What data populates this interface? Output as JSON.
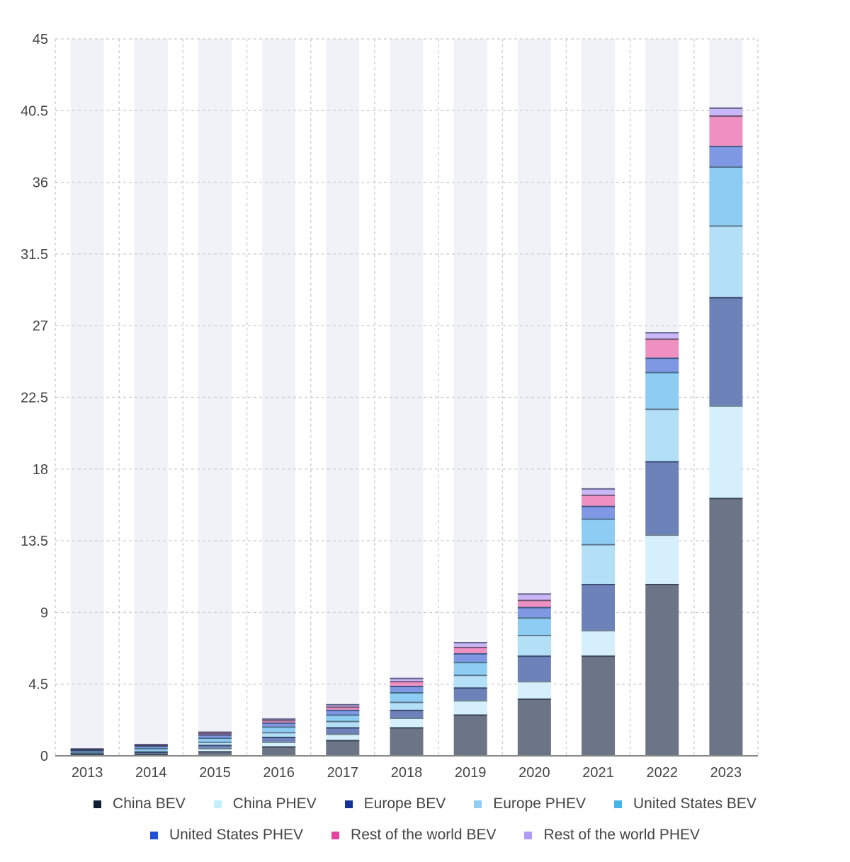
{
  "chart_data": {
    "type": "bar",
    "stacked": true,
    "categories": [
      "2013",
      "2014",
      "2015",
      "2016",
      "2017",
      "2018",
      "2019",
      "2020",
      "2021",
      "2022",
      "2023"
    ],
    "ylim": [
      0,
      45
    ],
    "yticks": [
      "0",
      "4.5",
      "9",
      "13.5",
      "18",
      "22.5",
      "27",
      "31.5",
      "36",
      "40.5",
      "45"
    ],
    "grid": true,
    "legend_position": "bottom",
    "series": [
      {
        "name": "China BEV",
        "color": "#6b7585",
        "values": [
          0.05,
          0.1,
          0.3,
          0.6,
          1.0,
          1.8,
          2.6,
          3.6,
          6.3,
          10.8,
          16.2
        ]
      },
      {
        "name": "China PHEV",
        "color": "#d6f0fb",
        "values": [
          0.05,
          0.05,
          0.2,
          0.3,
          0.4,
          0.6,
          0.9,
          1.1,
          1.6,
          3.1,
          5.8
        ]
      },
      {
        "name": "Europe BEV",
        "color": "#6c82b9",
        "values": [
          0.05,
          0.1,
          0.2,
          0.3,
          0.4,
          0.5,
          0.8,
          1.6,
          2.9,
          4.6,
          6.8
        ]
      },
      {
        "name": "Europe PHEV",
        "color": "#b3dff7",
        "values": [
          0.05,
          0.05,
          0.2,
          0.3,
          0.4,
          0.5,
          0.8,
          1.3,
          2.5,
          3.3,
          4.5
        ]
      },
      {
        "name": "United States BEV",
        "color": "#8dcdf3",
        "values": [
          0.1,
          0.2,
          0.25,
          0.35,
          0.4,
          0.6,
          0.8,
          1.1,
          1.6,
          2.3,
          3.7
        ]
      },
      {
        "name": "United States PHEV",
        "color": "#7e98e4",
        "values": [
          0.1,
          0.15,
          0.2,
          0.25,
          0.3,
          0.4,
          0.55,
          0.65,
          0.8,
          0.9,
          1.3
        ]
      },
      {
        "name": "Rest of the world BEV",
        "color": "#ee91c2",
        "values": [
          0.03,
          0.05,
          0.1,
          0.15,
          0.2,
          0.3,
          0.4,
          0.45,
          0.7,
          1.2,
          1.9
        ]
      },
      {
        "name": "Rest of the world PHEV",
        "color": "#c8b6f7",
        "values": [
          0.05,
          0.05,
          0.08,
          0.1,
          0.15,
          0.2,
          0.3,
          0.4,
          0.4,
          0.4,
          0.5
        ]
      }
    ]
  },
  "legend": {
    "items": [
      {
        "label": "China BEV",
        "color": "#0f1e32"
      },
      {
        "label": "China PHEV",
        "color": "#c6eefb"
      },
      {
        "label": "Europe BEV",
        "color": "#13329a"
      },
      {
        "label": "Europe PHEV",
        "color": "#8fcdf2"
      },
      {
        "label": "United States BEV",
        "color": "#48b4ec"
      },
      {
        "label": "United States PHEV",
        "color": "#1f4ed8"
      },
      {
        "label": "Rest of the world BEV",
        "color": "#e4459c"
      },
      {
        "label": "Rest of the world PHEV",
        "color": "#ae9cf5"
      }
    ]
  },
  "colors": {
    "background_band": "#f1f2f8",
    "grid": "#d2d2d2",
    "axis": "#888888",
    "separator": "#0f1e32"
  }
}
